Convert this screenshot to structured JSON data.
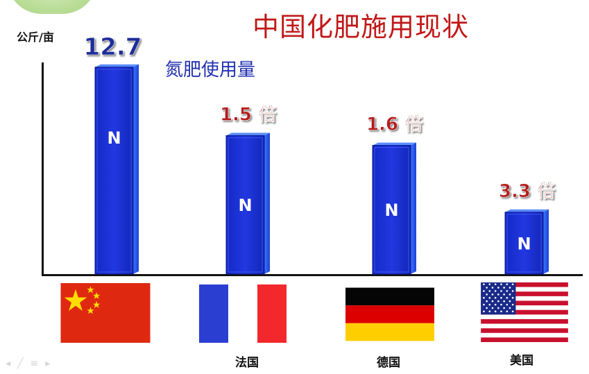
{
  "title": "中国化肥施用现状",
  "unit_label": "公斤/亩",
  "series_label": "氮肥使用量",
  "bar_symbol": "N",
  "countries": [
    {
      "flag": "china-flag",
      "label": ""
    },
    {
      "flag": "france-flag",
      "label": "法国"
    },
    {
      "flag": "germany-flag",
      "label": "德国"
    },
    {
      "flag": "usa-flag",
      "label": "美国"
    }
  ],
  "colors": {
    "title": "#c01818",
    "bar_front": "#1b2fd2",
    "bar_side": "#2e67ff",
    "value_primary": "#1f2d9a",
    "value_ratio": "#b51c1c"
  },
  "nav_icons": [
    "prev-icon",
    "pen-icon",
    "menu-icon",
    "next-icon"
  ],
  "nav_glyphs": [
    "◂",
    "╱",
    "≡",
    "▸"
  ],
  "chart_data": {
    "type": "bar",
    "title": "中国化肥施用现状",
    "ylabel": "公斤/亩",
    "categories": [
      "中国",
      "法国",
      "德国",
      "美国"
    ],
    "series": [
      {
        "name": "氮肥使用量",
        "values": [
          12.7,
          8.5,
          7.9,
          3.8
        ]
      }
    ],
    "data_labels": [
      "12.7",
      "1.5 倍",
      "1.6 倍",
      "3.3 倍"
    ],
    "ylim": [
      0,
      13.5
    ],
    "grid": false,
    "legend": "none"
  }
}
